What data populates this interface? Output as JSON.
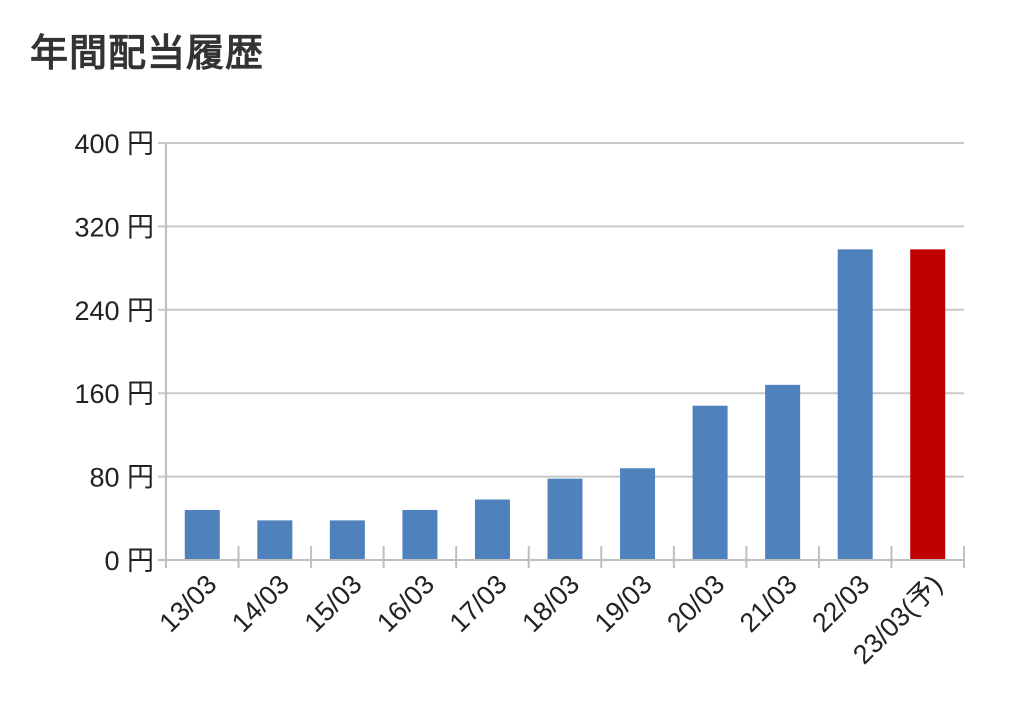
{
  "chart_data": {
    "type": "bar",
    "title": "年間配当履歴",
    "categories": [
      "13/03",
      "14/03",
      "15/03",
      "16/03",
      "17/03",
      "18/03",
      "19/03",
      "20/03",
      "21/03",
      "22/03",
      "23/03(予)"
    ],
    "values": [
      48,
      38,
      38,
      48,
      58,
      78,
      88,
      148,
      168,
      298,
      298
    ],
    "ylim": [
      0,
      400
    ],
    "yticks": [
      0,
      80,
      160,
      240,
      320,
      400
    ],
    "y_unit": "円",
    "xlabel": "",
    "ylabel": "",
    "grid": true,
    "legend": "none",
    "colors": {
      "actual": "#4f81bd",
      "forecast": "#c00000",
      "grid": "#c8c8c8",
      "axis": "#bfbfbf"
    },
    "forecast_index": 10
  }
}
